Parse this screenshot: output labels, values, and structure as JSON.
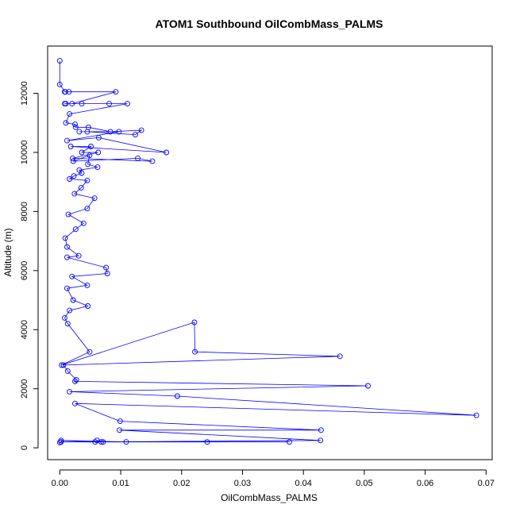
{
  "chart_data": {
    "type": "line",
    "title": "ATOM1 Southbound OilCombMass_PALMS",
    "xlabel": "OilCombMass_PALMS",
    "ylabel": "Altitude (m)",
    "xlim": [
      -0.002,
      0.071
    ],
    "ylim": [
      -400,
      13600
    ],
    "xticks": [
      0,
      0.01,
      0.02,
      0.03,
      0.04,
      0.05,
      0.06,
      0.07
    ],
    "xtick_labels": [
      "0.00",
      "0.01",
      "0.02",
      "0.03",
      "0.04",
      "0.05",
      "0.06",
      "0.07"
    ],
    "yticks": [
      0,
      2000,
      4000,
      6000,
      8000,
      10000,
      12000
    ],
    "ytick_labels": [
      "0",
      "2000",
      "4000",
      "6000",
      "8000",
      "10000",
      "12000"
    ],
    "grid": false,
    "legend": "none",
    "series_color": "#0000ff",
    "marker": "open-circle",
    "series": [
      {
        "x": [
          0,
          0,
          0.0009,
          0.0008,
          0.0015,
          0.0092,
          0.002,
          0.001,
          0.0008,
          0.0036,
          0.0081,
          0.0111,
          0.0016,
          0.001,
          0.0025,
          0.0026,
          0.0047,
          0.0083,
          0.0134,
          0.0124,
          0.0045,
          0.0032,
          0.0097,
          0.0012,
          0.0064,
          0.0175,
          0.0018,
          0.0051,
          0.0036,
          0.0063,
          0.0021,
          0.0152,
          0.0128,
          0.0022,
          0.0049,
          0.0046,
          0.0062,
          0.0032,
          0.0036,
          0.0023,
          0.0016,
          0.0045,
          0.0035,
          0.0024,
          0.0057,
          0.0045,
          0.0014,
          0.0039,
          0.0026,
          0.0009,
          0.0012,
          0.0031,
          0.0012,
          0.0076,
          0.0078,
          0.002,
          0.0045,
          0.0012,
          0.0022,
          0.0046,
          0.0016,
          0.0008,
          0.0013,
          0.0049,
          0.0003,
          0.0221,
          0.0222,
          0.046,
          0.0006,
          0.0013,
          0.0027,
          0.0025,
          0.0506,
          0.0016,
          0.0193,
          0.0684,
          0.0025,
          0.0099,
          0.0429,
          0.0098,
          0.0428,
          0.0058,
          0.0002,
          0.0109,
          0.0377,
          0.0242,
          0.0068,
          0.0061,
          0.0071,
          0.0002,
          0
        ],
        "y": [
          13100,
          12300,
          12050,
          12050,
          12050,
          12050,
          11650,
          11650,
          11650,
          11650,
          11650,
          11650,
          11300,
          11000,
          10950,
          10850,
          10850,
          10700,
          10750,
          10600,
          10700,
          10700,
          10700,
          10400,
          10500,
          10000,
          10200,
          10200,
          10000,
          10000,
          9800,
          9700,
          9800,
          9700,
          9900,
          9600,
          9500,
          9400,
          9300,
          9200,
          9100,
          9050,
          8800,
          8600,
          8450,
          8100,
          7900,
          7600,
          7400,
          7100,
          6800,
          6500,
          6450,
          6100,
          5900,
          5800,
          5500,
          5400,
          5000,
          4800,
          4650,
          4400,
          4200,
          3250,
          2800,
          4250,
          3250,
          3100,
          2800,
          2600,
          2300,
          2250,
          2100,
          1900,
          1750,
          1100,
          1500,
          900,
          600,
          600,
          250,
          200,
          250,
          200,
          200,
          200,
          200,
          250,
          200,
          200,
          180
        ]
      }
    ]
  }
}
